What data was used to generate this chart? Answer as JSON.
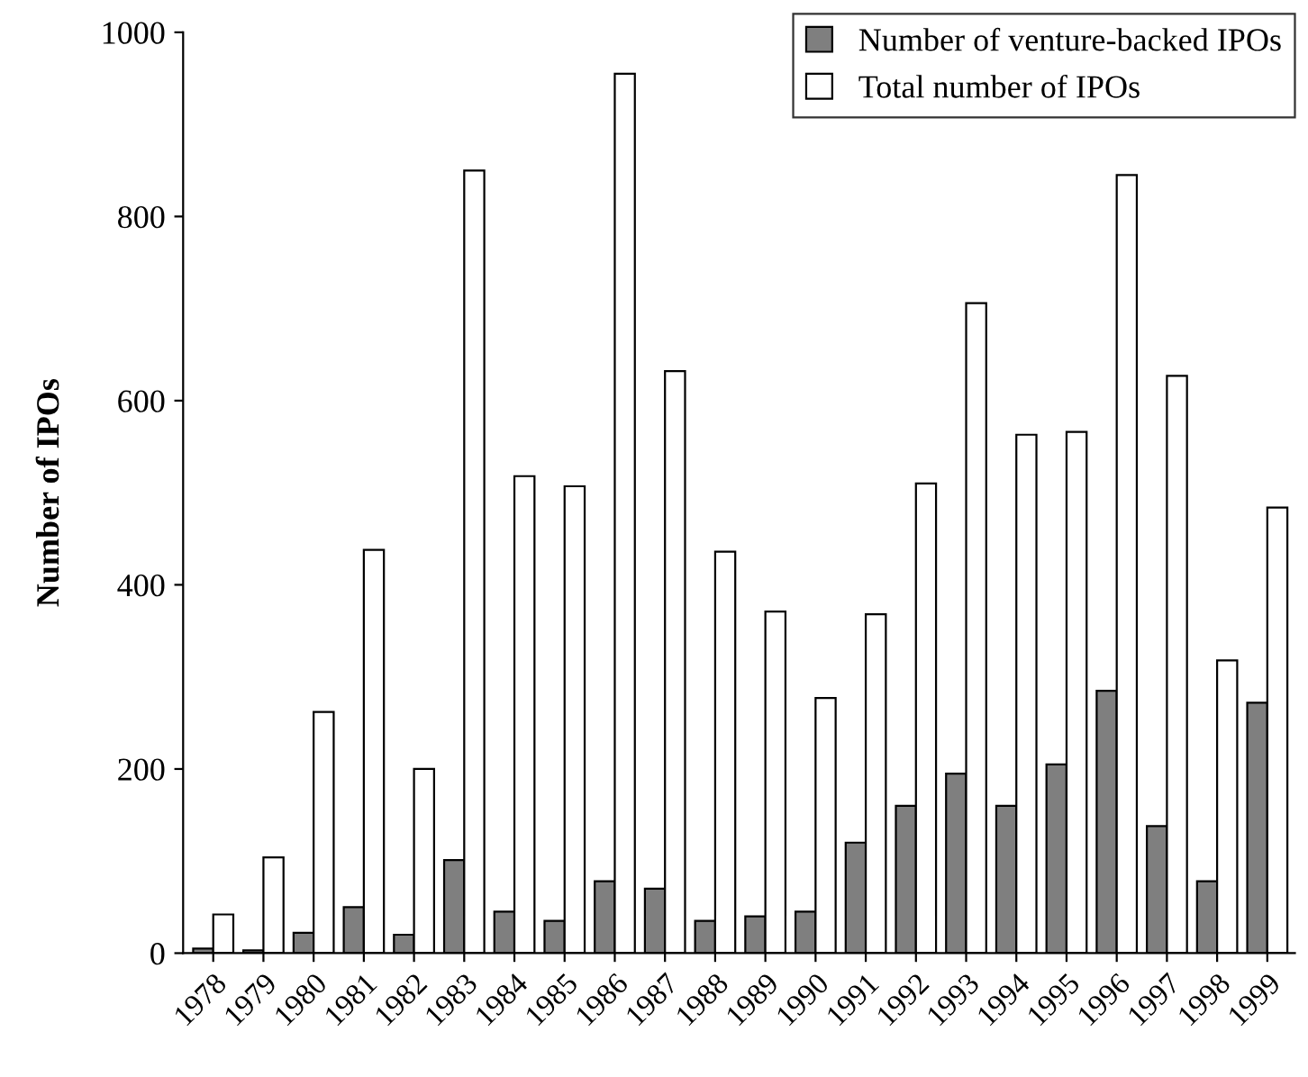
{
  "chart_data": {
    "type": "bar",
    "ylabel": "Number of IPOs",
    "categories": [
      "1978",
      "1979",
      "1980",
      "1981",
      "1982",
      "1983",
      "1984",
      "1985",
      "1986",
      "1987",
      "1988",
      "1989",
      "1990",
      "1991",
      "1992",
      "1993",
      "1994",
      "1995",
      "1996",
      "1997",
      "1998",
      "1999"
    ],
    "series": [
      {
        "name": "Number of venture-backed IPOs",
        "color": "#7f7f7f",
        "values": [
          5,
          3,
          22,
          50,
          20,
          101,
          45,
          35,
          78,
          70,
          35,
          40,
          45,
          120,
          160,
          195,
          160,
          205,
          285,
          138,
          78,
          272
        ]
      },
      {
        "name": "Total number of IPOs",
        "color": "#ffffff",
        "values": [
          42,
          104,
          262,
          438,
          200,
          850,
          518,
          507,
          955,
          632,
          436,
          371,
          277,
          368,
          510,
          706,
          563,
          566,
          845,
          627,
          318,
          484
        ]
      }
    ],
    "ylim": [
      0,
      1000
    ],
    "yticks": [
      0,
      200,
      400,
      600,
      800,
      1000
    ],
    "grid": false,
    "legend": "top right"
  }
}
